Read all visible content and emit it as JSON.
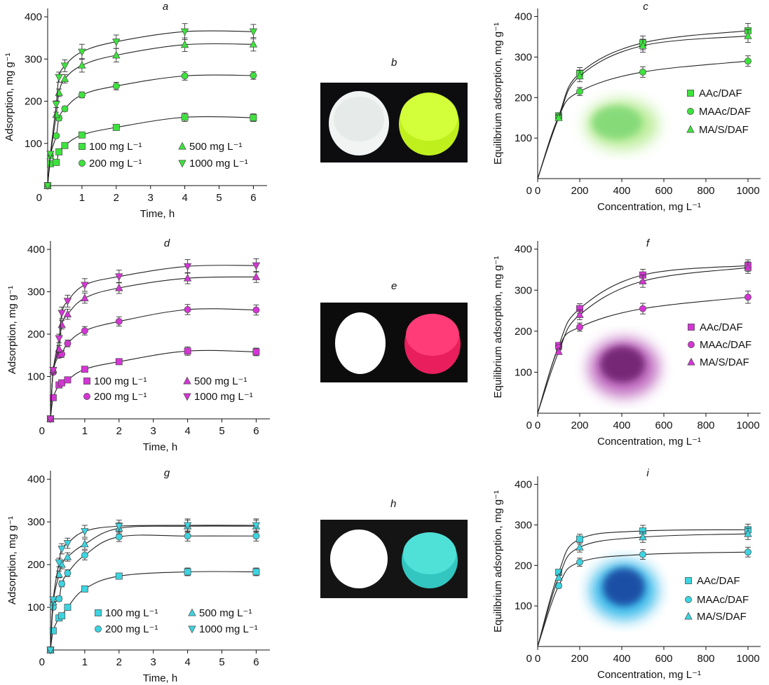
{
  "figure_labels": [
    "a",
    "b",
    "c",
    "d",
    "e",
    "f",
    "g",
    "h",
    "i"
  ],
  "kinetics_xlabel": "Time, h",
  "kinetics_ylabel": "Adsorption, mg g⁻¹",
  "isotherm_xlabel": "Concentration, mg L⁻¹",
  "isotherm_ylabel": "Equilibrium adsorption, mg g⁻¹",
  "chart_data": [
    {
      "id": "a",
      "type": "line",
      "title": "a",
      "color": "#3ee23e",
      "xlabel": "Time, h",
      "ylabel": "Adsorption, mg g⁻¹",
      "xlim": [
        0,
        6.4
      ],
      "ylim": [
        0,
        420
      ],
      "xticks": [
        0,
        1,
        2,
        3,
        4,
        5,
        6
      ],
      "yticks": [
        100,
        200,
        300,
        400
      ],
      "x": [
        0,
        0.08,
        0.25,
        0.33,
        0.5,
        1,
        2,
        4,
        6
      ],
      "series": [
        {
          "name": "100 mg L⁻¹",
          "marker": "square",
          "values": [
            0,
            52,
            55,
            80,
            95,
            120,
            138,
            162,
            161
          ],
          "err": [
            0,
            3,
            3,
            4,
            4,
            5,
            6,
            10,
            9
          ]
        },
        {
          "name": "200 mg L⁻¹",
          "marker": "circle",
          "values": [
            0,
            72,
            118,
            160,
            182,
            215,
            236,
            260,
            261
          ],
          "err": [
            0,
            4,
            5,
            6,
            6,
            7,
            9,
            10,
            9
          ]
        },
        {
          "name": "500 mg L⁻¹",
          "marker": "triangle-up",
          "values": [
            0,
            70,
            168,
            220,
            253,
            285,
            309,
            334,
            335
          ],
          "err": [
            0,
            5,
            6,
            9,
            10,
            16,
            16,
            16,
            16
          ]
        },
        {
          "name": "1000 mg L⁻¹",
          "marker": "triangle-down",
          "values": [
            0,
            75,
            193,
            257,
            284,
            317,
            341,
            365,
            365
          ],
          "err": [
            0,
            5,
            8,
            12,
            14,
            18,
            16,
            19,
            17
          ]
        }
      ],
      "legend": [
        "100 mg L⁻¹",
        "200 mg L⁻¹",
        "500 mg L⁻¹",
        "1000 mg L⁻¹"
      ]
    },
    {
      "id": "c",
      "type": "line",
      "title": "c",
      "color": "#3ee23e",
      "xlabel": "Concentration, mg L⁻¹",
      "ylabel": "Equilibrium adsorption, mg g⁻¹",
      "xlim": [
        0,
        1060
      ],
      "ylim": [
        0,
        420
      ],
      "xticks": [
        0,
        200,
        400,
        600,
        800,
        1000
      ],
      "yticks": [
        100,
        200,
        300,
        400
      ],
      "x": [
        100,
        200,
        500,
        1000
      ],
      "series": [
        {
          "name": "AAc/DAF",
          "marker": "square",
          "values": [
            155,
            260,
            335,
            365
          ],
          "err": [
            6,
            14,
            17,
            18
          ]
        },
        {
          "name": "MAAc/DAF",
          "marker": "circle",
          "values": [
            153,
            215,
            263,
            290
          ],
          "err": [
            6,
            10,
            13,
            13
          ]
        },
        {
          "name": "MA/S/DAF",
          "marker": "triangle-up",
          "values": [
            150,
            253,
            328,
            352
          ],
          "err": [
            6,
            14,
            16,
            16
          ]
        }
      ],
      "legend": [
        "AAc/DAF",
        "MAAc/DAF",
        "MA/S/DAF"
      ]
    },
    {
      "id": "d",
      "type": "line",
      "title": "d",
      "color": "#d535d5",
      "xlabel": "Time, h",
      "ylabel": "Adsorption, mg g⁻¹",
      "xlim": [
        0,
        6.4
      ],
      "ylim": [
        0,
        420
      ],
      "xticks": [
        0,
        1,
        2,
        3,
        4,
        5,
        6
      ],
      "yticks": [
        100,
        200,
        300,
        400
      ],
      "x": [
        0,
        0.08,
        0.25,
        0.33,
        0.5,
        1,
        2,
        4,
        6
      ],
      "series": [
        {
          "name": "100 mg L⁻¹",
          "marker": "square",
          "values": [
            0,
            50,
            80,
            85,
            92,
            117,
            135,
            160,
            158
          ],
          "err": [
            0,
            3,
            4,
            4,
            4,
            5,
            6,
            10,
            9
          ]
        },
        {
          "name": "200 mg L⁻¹",
          "marker": "circle",
          "values": [
            0,
            110,
            150,
            153,
            178,
            208,
            230,
            258,
            257
          ],
          "err": [
            0,
            5,
            6,
            8,
            8,
            10,
            11,
            12,
            12
          ]
        },
        {
          "name": "500 mg L⁻¹",
          "marker": "triangle-up",
          "values": [
            0,
            115,
            165,
            222,
            247,
            285,
            309,
            332,
            335
          ],
          "err": [
            0,
            6,
            8,
            10,
            12,
            12,
            13,
            13,
            13
          ]
        },
        {
          "name": "1000 mg L⁻¹",
          "marker": "triangle-down",
          "values": [
            0,
            115,
            190,
            250,
            278,
            316,
            336,
            360,
            362
          ],
          "err": [
            0,
            6,
            10,
            14,
            14,
            15,
            15,
            16,
            16
          ]
        }
      ],
      "legend": [
        "100 mg L⁻¹",
        "200 mg L⁻¹",
        "500 mg L⁻¹",
        "1000 mg L⁻¹"
      ]
    },
    {
      "id": "f",
      "type": "line",
      "title": "f",
      "color": "#d535d5",
      "xlabel": "Concentration, mg L⁻¹",
      "ylabel": "Equilibrium adsorption, mg g⁻¹",
      "xlim": [
        0,
        1060
      ],
      "ylim": [
        0,
        420
      ],
      "xticks": [
        0,
        200,
        400,
        600,
        800,
        1000
      ],
      "yticks": [
        100,
        200,
        300,
        400
      ],
      "x": [
        100,
        200,
        500,
        1000
      ],
      "series": [
        {
          "name": "AAc/DAF",
          "marker": "square",
          "values": [
            165,
            255,
            337,
            360
          ],
          "err": [
            6,
            12,
            14,
            14
          ]
        },
        {
          "name": "MAAc/DAF",
          "marker": "circle",
          "values": [
            160,
            210,
            255,
            283
          ],
          "err": [
            6,
            10,
            13,
            15
          ]
        },
        {
          "name": "MA/S/DAF",
          "marker": "triangle-up",
          "values": [
            150,
            240,
            322,
            355
          ],
          "err": [
            6,
            12,
            15,
            14
          ]
        }
      ],
      "legend": [
        "AAc/DAF",
        "MAAc/DAF",
        "MA/S/DAF"
      ]
    },
    {
      "id": "g",
      "type": "line",
      "title": "g",
      "color": "#3cd4e0",
      "xlabel": "Time, h",
      "ylabel": "Adsorption, mg g⁻¹",
      "xlim": [
        0,
        6.4
      ],
      "ylim": [
        0,
        420
      ],
      "xticks": [
        0,
        1,
        2,
        3,
        4,
        5,
        6
      ],
      "yticks": [
        100,
        200,
        300,
        400
      ],
      "x": [
        0,
        0.08,
        0.25,
        0.33,
        0.5,
        1,
        2,
        4,
        6
      ],
      "series": [
        {
          "name": "100 mg L⁻¹",
          "marker": "square",
          "values": [
            0,
            45,
            75,
            80,
            100,
            143,
            173,
            183,
            183
          ],
          "err": [
            0,
            3,
            4,
            4,
            5,
            6,
            7,
            9,
            9
          ]
        },
        {
          "name": "200 mg L⁻¹",
          "marker": "circle",
          "values": [
            0,
            100,
            120,
            155,
            180,
            222,
            265,
            267,
            267
          ],
          "err": [
            0,
            5,
            6,
            7,
            8,
            11,
            11,
            12,
            12
          ]
        },
        {
          "name": "500 mg L⁻¹",
          "marker": "triangle-up",
          "values": [
            0,
            112,
            177,
            200,
            218,
            248,
            285,
            290,
            290
          ],
          "err": [
            0,
            6,
            8,
            10,
            10,
            12,
            13,
            14,
            14
          ]
        },
        {
          "name": "1000 mg L⁻¹",
          "marker": "triangle-down",
          "values": [
            0,
            118,
            205,
            237,
            250,
            278,
            290,
            292,
            292
          ],
          "err": [
            0,
            6,
            10,
            12,
            12,
            14,
            14,
            15,
            15
          ]
        }
      ],
      "legend": [
        "100 mg L⁻¹",
        "200 mg L⁻¹",
        "500 mg L⁻¹",
        "1000 mg L⁻¹"
      ]
    },
    {
      "id": "i",
      "type": "line",
      "title": "i",
      "color": "#3cd4e0",
      "xlabel": "Concentration, mg L⁻¹",
      "ylabel": "Equilibrium adsorption, mg g⁻¹",
      "xlim": [
        0,
        1060
      ],
      "ylim": [
        0,
        420
      ],
      "xticks": [
        0,
        200,
        400,
        600,
        800,
        1000
      ],
      "yticks": [
        100,
        200,
        300,
        400
      ],
      "x": [
        100,
        200,
        500,
        1000
      ],
      "series": [
        {
          "name": "AAc/DAF",
          "marker": "square",
          "values": [
            183,
            265,
            285,
            288
          ],
          "err": [
            6,
            12,
            14,
            14
          ]
        },
        {
          "name": "MAAc/DAF",
          "marker": "circle",
          "values": [
            150,
            208,
            227,
            233
          ],
          "err": [
            6,
            10,
            12,
            12
          ]
        },
        {
          "name": "MA/S/DAF",
          "marker": "triangle-up",
          "values": [
            170,
            245,
            270,
            278
          ],
          "err": [
            6,
            12,
            13,
            14
          ]
        }
      ],
      "legend": [
        "AAc/DAF",
        "MAAc/DAF",
        "MA/S/DAF"
      ]
    }
  ],
  "photos": [
    {
      "id": "b",
      "left_color": "#f2f4f3",
      "right_color": "#c8ff2a",
      "background": "#0d0d10"
    },
    {
      "id": "e",
      "left_color": "#ffffff",
      "right_color": "#ff2f6e",
      "background": "#0c0c0c"
    },
    {
      "id": "h",
      "left_color": "#ffffff",
      "right_color": "#3fd8cf",
      "background": "#141414"
    }
  ]
}
